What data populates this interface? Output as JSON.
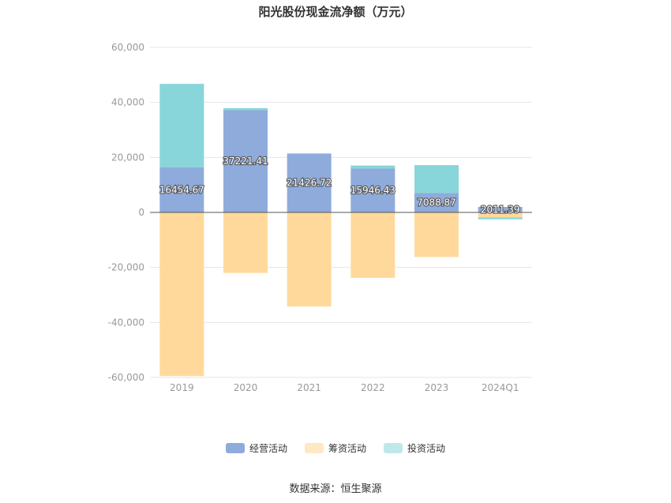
{
  "title": "阳光股份现金流净额（万元）",
  "source": "数据来源：恒生聚源",
  "colors": {
    "operating": "#8eabdc",
    "financing": "#ffd99b",
    "investing": "#88d6d9",
    "grid": "#e6e6e6",
    "axis_text": "#999999"
  },
  "chart_data": {
    "type": "bar",
    "stacked": true,
    "categories": [
      "2019",
      "2020",
      "2021",
      "2022",
      "2023",
      "2024Q1"
    ],
    "series": [
      {
        "name": "经营活动",
        "key": "operating",
        "values": [
          16454.67,
          37221.41,
          21426.72,
          15946.43,
          7088.87,
          2011.39
        ],
        "labels": [
          "16454.67",
          "37221.41",
          "21426.72",
          "15946.43",
          "7088.87",
          "2011.39"
        ]
      },
      {
        "name": "筹资活动",
        "key": "financing",
        "values": [
          -59500,
          -22000,
          -34200,
          -23800,
          -16200,
          -1800
        ]
      },
      {
        "name": "投资活动",
        "key": "investing",
        "values": [
          30300,
          700,
          0,
          1100,
          10100,
          -700
        ]
      }
    ],
    "yticks": [
      "60,000",
      "40,000",
      "20,000",
      "0",
      "-20,000",
      "-40,000",
      "-60,000"
    ],
    "ylim": [
      -60000,
      60000
    ],
    "grid": true,
    "legend_position": "bottom"
  }
}
